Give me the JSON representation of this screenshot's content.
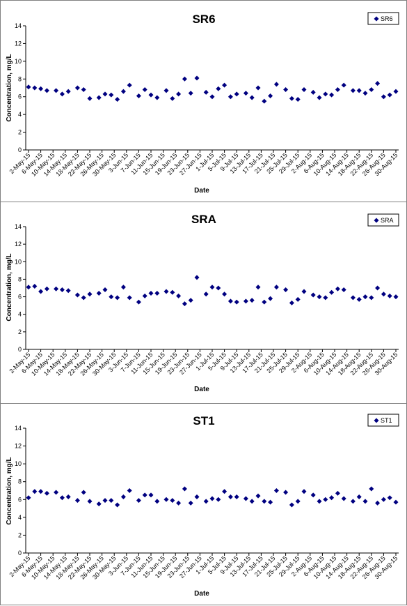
{
  "colors": {
    "marker": "#000080",
    "axis": "#000000",
    "border": "#808080"
  },
  "chart_data": [
    {
      "type": "scatter",
      "title": "SR6",
      "xlabel": "Date",
      "ylabel": "Concentration, mg/L",
      "ylim": [
        0,
        14
      ],
      "yticks": [
        "0",
        "2",
        "4",
        "6",
        "8",
        "10",
        "12",
        "14"
      ],
      "legend_position": "top-right",
      "grid": false,
      "series": [
        {
          "name": "SR6",
          "x": [
            "2-May-15",
            "4-May-15",
            "6-May-15",
            "8-May-15",
            "11-May-15",
            "13-May-15",
            "15-May-15",
            "18-May-15",
            "20-May-15",
            "22-May-15",
            "25-May-15",
            "27-May-15",
            "29-May-15",
            "31-May-15",
            "2-Jun-15",
            "4-Jun-15",
            "7-Jun-15",
            "9-Jun-15",
            "11-Jun-15",
            "13-Jun-15",
            "16-Jun-15",
            "18-Jun-15",
            "20-Jun-15",
            "22-Jun-15",
            "24-Jun-15",
            "26-Jun-15",
            "29-Jun-15",
            "1-Jul-15",
            "3-Jul-15",
            "5-Jul-15",
            "7-Jul-15",
            "9-Jul-15",
            "12-Jul-15",
            "14-Jul-15",
            "16-Jul-15",
            "18-Jul-15",
            "20-Jul-15",
            "22-Jul-15",
            "25-Jul-15",
            "27-Jul-15",
            "29-Jul-15",
            "31-Jul-15",
            "3-Aug-15",
            "5-Aug-15",
            "7-Aug-15",
            "9-Aug-15",
            "11-Aug-15",
            "13-Aug-15",
            "16-Aug-15",
            "18-Aug-15",
            "20-Aug-15",
            "22-Aug-15",
            "24-Aug-15",
            "26-Aug-15",
            "28-Aug-15",
            "30-Aug-15"
          ],
          "y": [
            7.1,
            7.0,
            6.9,
            6.7,
            6.7,
            6.3,
            6.6,
            7.0,
            6.8,
            5.8,
            5.9,
            6.3,
            6.2,
            5.7,
            6.6,
            7.3,
            6.1,
            6.8,
            6.2,
            5.9,
            6.7,
            5.8,
            6.3,
            8.0,
            6.4,
            8.1,
            6.5,
            6.0,
            6.9,
            7.3,
            6.0,
            6.3,
            6.4,
            5.9,
            7.0,
            5.5,
            6.1,
            7.4,
            6.8,
            5.8,
            5.7,
            6.8,
            6.5,
            5.9,
            6.3,
            6.2,
            6.8,
            7.3,
            6.7,
            6.7,
            6.4,
            6.8,
            7.5,
            6.0,
            6.2,
            6.6
          ]
        }
      ]
    },
    {
      "type": "scatter",
      "title": "SRA",
      "xlabel": "Date",
      "ylabel": "Concentration, mg/L",
      "ylim": [
        0,
        14
      ],
      "yticks": [
        "0",
        "2",
        "4",
        "6",
        "8",
        "10",
        "12",
        "14"
      ],
      "legend_position": "top-right",
      "grid": false,
      "series": [
        {
          "name": "SRA",
          "x": [
            "2-May-15",
            "4-May-15",
            "6-May-15",
            "8-May-15",
            "11-May-15",
            "13-May-15",
            "15-May-15",
            "18-May-15",
            "20-May-15",
            "22-May-15",
            "25-May-15",
            "27-May-15",
            "29-May-15",
            "31-May-15",
            "2-Jun-15",
            "4-Jun-15",
            "7-Jun-15",
            "9-Jun-15",
            "11-Jun-15",
            "13-Jun-15",
            "16-Jun-15",
            "18-Jun-15",
            "20-Jun-15",
            "22-Jun-15",
            "24-Jun-15",
            "26-Jun-15",
            "29-Jun-15",
            "1-Jul-15",
            "3-Jul-15",
            "5-Jul-15",
            "7-Jul-15",
            "9-Jul-15",
            "12-Jul-15",
            "14-Jul-15",
            "16-Jul-15",
            "18-Jul-15",
            "20-Jul-15",
            "22-Jul-15",
            "25-Jul-15",
            "27-Jul-15",
            "29-Jul-15",
            "31-Jul-15",
            "3-Aug-15",
            "5-Aug-15",
            "7-Aug-15",
            "9-Aug-15",
            "11-Aug-15",
            "13-Aug-15",
            "16-Aug-15",
            "18-Aug-15",
            "20-Aug-15",
            "22-Aug-15",
            "24-Aug-15",
            "26-Aug-15",
            "28-Aug-15",
            "30-Aug-15"
          ],
          "y": [
            7.1,
            7.2,
            6.6,
            6.9,
            6.9,
            6.8,
            6.7,
            6.2,
            5.9,
            6.3,
            6.4,
            6.8,
            6.0,
            5.9,
            7.1,
            5.9,
            5.4,
            6.1,
            6.4,
            6.4,
            6.6,
            6.5,
            6.1,
            5.2,
            5.6,
            8.2,
            6.3,
            7.1,
            7.0,
            6.3,
            5.5,
            5.4,
            5.5,
            5.6,
            7.1,
            5.4,
            5.8,
            7.1,
            6.8,
            5.3,
            5.7,
            6.6,
            6.2,
            6.0,
            5.9,
            6.5,
            6.9,
            6.8,
            5.9,
            5.7,
            6.0,
            5.9,
            7.0,
            6.3,
            6.1,
            6.0
          ]
        }
      ]
    },
    {
      "type": "scatter",
      "title": "ST1",
      "xlabel": "Date",
      "ylabel": "Concentration, mg/L",
      "ylim": [
        0,
        14
      ],
      "yticks": [
        "0",
        "2",
        "4",
        "6",
        "8",
        "10",
        "12",
        "14"
      ],
      "legend_position": "top-right",
      "grid": false,
      "series": [
        {
          "name": "ST1",
          "x": [
            "2-May-15",
            "4-May-15",
            "6-May-15",
            "8-May-15",
            "11-May-15",
            "13-May-15",
            "15-May-15",
            "18-May-15",
            "20-May-15",
            "22-May-15",
            "25-May-15",
            "27-May-15",
            "29-May-15",
            "31-May-15",
            "2-Jun-15",
            "4-Jun-15",
            "7-Jun-15",
            "9-Jun-15",
            "11-Jun-15",
            "13-Jun-15",
            "16-Jun-15",
            "18-Jun-15",
            "20-Jun-15",
            "22-Jun-15",
            "24-Jun-15",
            "26-Jun-15",
            "29-Jun-15",
            "1-Jul-15",
            "3-Jul-15",
            "5-Jul-15",
            "7-Jul-15",
            "9-Jul-15",
            "12-Jul-15",
            "14-Jul-15",
            "16-Jul-15",
            "18-Jul-15",
            "20-Jul-15",
            "22-Jul-15",
            "25-Jul-15",
            "27-Jul-15",
            "29-Jul-15",
            "31-Jul-15",
            "3-Aug-15",
            "5-Aug-15",
            "7-Aug-15",
            "9-Aug-15",
            "11-Aug-15",
            "13-Aug-15",
            "16-Aug-15",
            "18-Aug-15",
            "20-Aug-15",
            "22-Aug-15",
            "24-Aug-15",
            "26-Aug-15",
            "28-Aug-15",
            "30-Aug-15"
          ],
          "y": [
            6.2,
            6.9,
            6.9,
            6.7,
            6.8,
            6.2,
            6.3,
            5.9,
            6.8,
            5.8,
            5.5,
            5.9,
            5.9,
            5.4,
            6.3,
            7.0,
            5.9,
            6.5,
            6.5,
            5.8,
            6.0,
            5.9,
            5.6,
            7.2,
            5.6,
            6.3,
            5.8,
            6.1,
            6.0,
            6.9,
            6.3,
            6.3,
            6.1,
            5.8,
            6.4,
            5.8,
            5.7,
            7.0,
            6.8,
            5.4,
            5.8,
            6.9,
            6.5,
            5.8,
            6.0,
            6.2,
            6.7,
            6.1,
            5.8,
            6.3,
            5.8,
            7.2,
            5.6,
            6.0,
            6.2,
            5.7
          ]
        }
      ]
    }
  ]
}
